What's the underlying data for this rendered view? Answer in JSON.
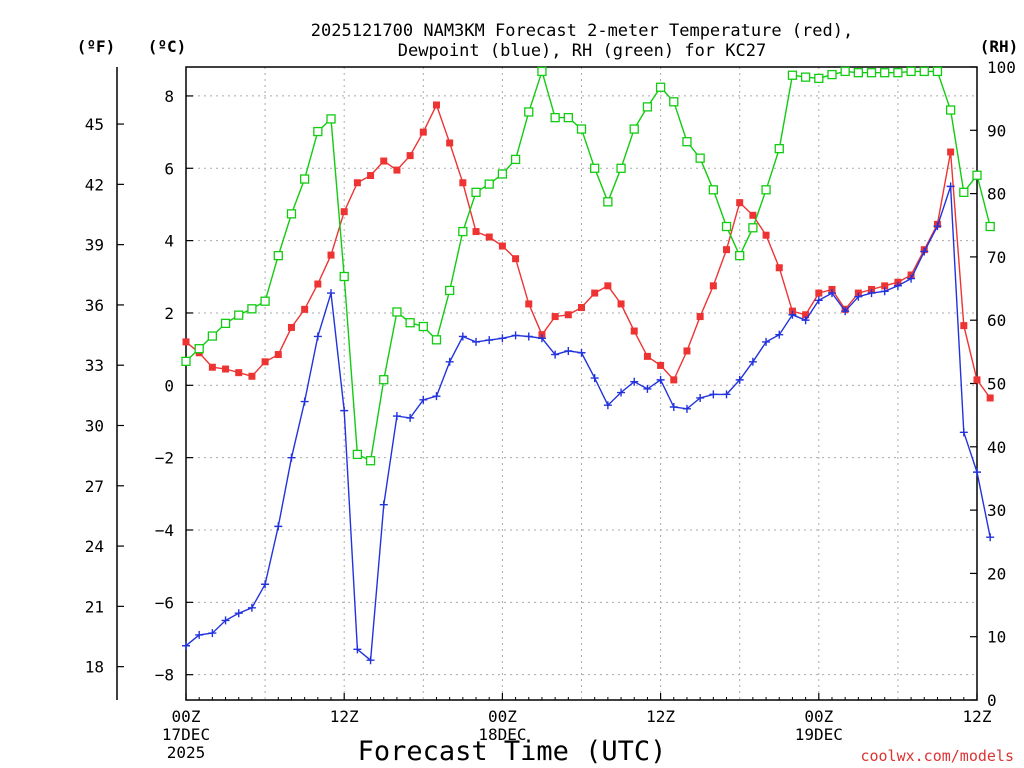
{
  "chart_data": {
    "type": "line",
    "title_line1": "2025121700 NAM3KM Forecast 2-meter Temperature (red),",
    "title_line2": "Dewpoint (blue), RH (green) for KC27",
    "xlabel": "Forecast Time (UTC)",
    "units": {
      "f": "(ºF)",
      "c": "(ºC)",
      "rh": "(RH)"
    },
    "credit": "coolwx.com/models",
    "xlim": [
      0,
      60
    ],
    "ylim_c": [
      -8.7,
      8.8
    ],
    "ylim_rh": [
      0,
      100
    ],
    "xticks": [
      {
        "x": 0,
        "l1": "00Z",
        "l2": "17DEC",
        "l3": "2025"
      },
      {
        "x": 12,
        "l1": "12Z",
        "l2": "",
        "l3": ""
      },
      {
        "x": 24,
        "l1": "00Z",
        "l2": "18DEC",
        "l3": ""
      },
      {
        "x": 36,
        "l1": "12Z",
        "l2": "",
        "l3": ""
      },
      {
        "x": 48,
        "l1": "00Z",
        "l2": "19DEC",
        "l3": ""
      },
      {
        "x": 60,
        "l1": "12Z",
        "l2": "",
        "l3": ""
      }
    ],
    "ticks_c": [
      -8,
      -6,
      -4,
      -2,
      0,
      2,
      4,
      6,
      8
    ],
    "tick_labels_c": [
      "−8",
      "−6",
      "−4",
      "−2",
      "0",
      "2",
      "4",
      "6",
      "8"
    ],
    "ticks_f": [
      18,
      21,
      24,
      27,
      30,
      33,
      36,
      39,
      42,
      45
    ],
    "tick_labels_f": [
      "18",
      "21",
      "24",
      "27",
      "30",
      "33",
      "36",
      "39",
      "42",
      "45"
    ],
    "ticks_rh": [
      0,
      10,
      20,
      30,
      40,
      50,
      60,
      70,
      80,
      90,
      100
    ],
    "tick_labels_rh": [
      "0",
      "10",
      "20",
      "30",
      "40",
      "50",
      "60",
      "70",
      "80",
      "90",
      "100"
    ],
    "grid": true,
    "colors": {
      "temperature": "#ee3333",
      "dewpoint": "#2233dd",
      "rh": "#11cc11",
      "credit": "#dd3333",
      "grid": "#aaaaaa"
    },
    "series": [
      {
        "name": "Temperature",
        "axis": "C",
        "marker": "filled-square",
        "values": [
          1.2,
          0.9,
          0.5,
          0.45,
          0.35,
          0.25,
          0.65,
          0.85,
          1.6,
          2.1,
          2.8,
          3.6,
          4.8,
          5.6,
          5.8,
          6.2,
          5.95,
          6.35,
          7.0,
          7.75,
          6.7,
          5.6,
          4.25,
          4.1,
          3.85,
          3.5,
          2.25,
          1.4,
          1.9,
          1.95,
          2.15,
          2.55,
          2.75,
          2.25,
          1.5,
          0.8,
          0.55,
          0.15,
          0.95,
          1.9,
          2.75,
          3.75,
          5.05,
          4.7,
          4.15,
          3.25,
          2.05,
          1.95,
          2.55,
          2.65,
          2.1,
          2.55,
          2.65,
          2.75,
          2.85,
          3.05,
          3.75,
          4.45,
          6.45,
          1.65,
          0.15,
          -0.35
        ]
      },
      {
        "name": "Dewpoint",
        "axis": "C",
        "marker": "plus",
        "values": [
          -7.2,
          -6.9,
          -6.85,
          -6.5,
          -6.3,
          -6.15,
          -5.5,
          -3.9,
          -2.0,
          -0.45,
          1.35,
          2.55,
          -0.7,
          -7.3,
          -7.6,
          -3.3,
          -0.85,
          -0.9,
          -0.4,
          -0.3,
          0.65,
          1.35,
          1.2,
          1.25,
          1.3,
          1.38,
          1.35,
          1.3,
          0.85,
          0.95,
          0.9,
          0.2,
          -0.55,
          -0.2,
          0.1,
          -0.1,
          0.15,
          -0.6,
          -0.65,
          -0.35,
          -0.25,
          -0.25,
          0.15,
          0.65,
          1.2,
          1.4,
          1.95,
          1.8,
          2.35,
          2.55,
          2.05,
          2.45,
          2.55,
          2.6,
          2.75,
          2.95,
          3.7,
          4.4,
          5.5,
          -1.3,
          -2.4,
          -4.2
        ]
      },
      {
        "name": "RH",
        "axis": "RH",
        "marker": "open-square",
        "values": [
          53.5,
          55.5,
          57.5,
          59.5,
          60.8,
          61.8,
          63.0,
          70.2,
          76.8,
          82.3,
          89.8,
          91.8,
          66.9,
          38.8,
          37.8,
          50.6,
          61.3,
          59.6,
          59.0,
          56.9,
          64.7,
          74.0,
          80.2,
          81.5,
          83.1,
          85.4,
          92.9,
          99.3,
          92.0,
          92.0,
          90.2,
          84.0,
          78.7,
          84.0,
          90.2,
          93.7,
          96.8,
          94.5,
          88.2,
          85.6,
          80.6,
          74.8,
          70.2,
          74.6,
          80.6,
          87.1,
          98.7,
          98.4,
          98.2,
          98.8,
          99.3,
          99.1,
          99.1,
          99.1,
          99.1,
          99.3,
          99.3,
          99.3,
          93.2,
          80.2,
          82.9,
          74.8
        ]
      }
    ]
  }
}
